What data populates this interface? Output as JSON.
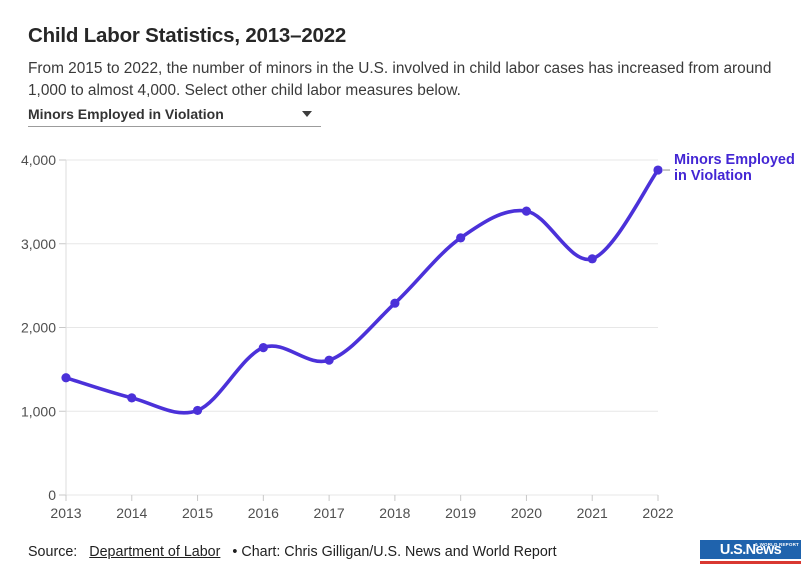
{
  "header": {
    "title": "Child Labor Statistics, 2013–2022",
    "subtitle": "From 2015 to 2022, the number of minors in the U.S. involved in child labor cases has increased from around 1,000 to almost 4,000. Select other child labor measures below."
  },
  "dropdown": {
    "selected_option": "Minors Employed in Violation"
  },
  "chart_data": {
    "type": "line",
    "title": "",
    "xlabel": "",
    "ylabel": "",
    "categories": [
      "2013",
      "2014",
      "2015",
      "2016",
      "2017",
      "2018",
      "2019",
      "2020",
      "2021",
      "2022"
    ],
    "series": [
      {
        "name": "Minors Employed in Violation",
        "values": [
          1400,
          1160,
          1010,
          1760,
          1610,
          2290,
          3070,
          3390,
          2820,
          3880
        ]
      }
    ],
    "ylim": [
      0,
      4000
    ],
    "ytick_values": [
      0,
      1000,
      2000,
      3000,
      4000
    ],
    "ytick_labels": [
      "0",
      "1,000",
      "2,000",
      "3,000",
      "4,000"
    ],
    "grid": true,
    "legend_position": "right-of-last-point",
    "legend_lines": [
      "Minors Employed",
      "in Violation"
    ],
    "line_color": "#4b31d9",
    "legend_text_color": "#4326d4",
    "gridline_color": "#e7e7e7",
    "axis_line_color": "#dcdcdc",
    "tick_color": "#c8c8c8",
    "axis_label_color": "#4f4f4f"
  },
  "footer": {
    "source_prefix": "Source:",
    "source_link_label": "Department of Labor",
    "credit": "• Chart: Chris Gilligan/U.S. News and World Report",
    "logo_text": "U.S.News",
    "logo_tagline": "& WORLD REPORT",
    "logo_blue": "#1f63ad",
    "logo_red": "#d93831"
  }
}
